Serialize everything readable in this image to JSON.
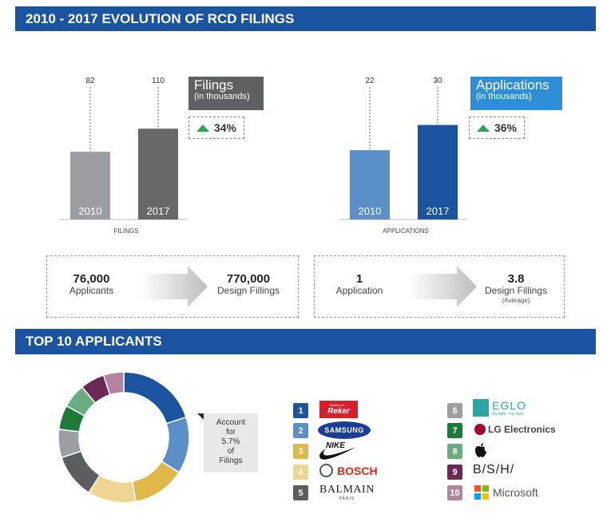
{
  "sections": {
    "evolution_title": "2010 - 2017 EVOLUTION OF RCD FILINGS",
    "top10_title": "TOP 10 APPLICANTS"
  },
  "colors": {
    "banner": "#1a54a0",
    "filings_2010": "#9b9fa3",
    "filings_2017": "#66686b",
    "applications_2010": "#5b8fc7",
    "applications_2017": "#1a54a0",
    "up_arrow": "#2aa55a"
  },
  "chart_data": [
    {
      "type": "bar",
      "categories": [
        "2010",
        "2017"
      ],
      "values": [
        82,
        110
      ],
      "xlabel": "FILINGS",
      "title": "Filings",
      "subtitle": "(in thousands)",
      "change": "34%"
    },
    {
      "type": "bar",
      "categories": [
        "2010",
        "2017"
      ],
      "values": [
        22,
        30
      ],
      "xlabel": "APPLICATIONS",
      "title": "Applications",
      "subtitle": "(in thousands)",
      "change": "36%"
    },
    {
      "type": "pie",
      "categories": [
        "1",
        "2",
        "3",
        "4",
        "5",
        "6",
        "7",
        "8",
        "9",
        "10"
      ],
      "values": [
        20,
        14,
        13,
        12,
        11,
        7,
        6,
        6,
        6,
        5
      ],
      "colors": [
        "#1a54a0",
        "#5b8fc7",
        "#e0b84a",
        "#efd58f",
        "#5b5e61",
        "#9b9fa3",
        "#1e7a3a",
        "#6aab80",
        "#6a2a55",
        "#b284a0"
      ],
      "annotation": [
        "Account",
        "for",
        "5.7%",
        "of",
        "Filings"
      ]
    }
  ],
  "stats": {
    "left_from_num": "76,000",
    "left_from_label": "Applicants",
    "left_to_num": "770,000",
    "left_to_label": "Design Fillings",
    "right_from_num": "1",
    "right_from_label": "Application",
    "right_to_num": "3.8",
    "right_to_label": "Design Fillings",
    "right_to_sub": "(Average)"
  },
  "applicants": [
    {
      "rank": "1",
      "name": "Reker",
      "tagline": "Rivière du ...",
      "color": "#1a54a0"
    },
    {
      "rank": "2",
      "name": "SAMSUNG",
      "color": "#5b8fc7"
    },
    {
      "rank": "3",
      "name": "NIKE",
      "color": "#e0b84a"
    },
    {
      "rank": "4",
      "name": "BOSCH",
      "color": "#efd58f"
    },
    {
      "rank": "5",
      "name": "BALMAIN",
      "sub": "PARIS",
      "color": "#5b5e61"
    },
    {
      "rank": "6",
      "name": "EGLO",
      "tagline": "my light · my style",
      "color": "#9b9fa3"
    },
    {
      "rank": "7",
      "name": "LG Electronics",
      "color": "#1e7a3a"
    },
    {
      "rank": "8",
      "name": "Apple",
      "color": "#6aab80"
    },
    {
      "rank": "9",
      "name": "B/S/H/",
      "color": "#6a2a55"
    },
    {
      "rank": "10",
      "name": "Microsoft",
      "color": "#b284a0"
    }
  ]
}
